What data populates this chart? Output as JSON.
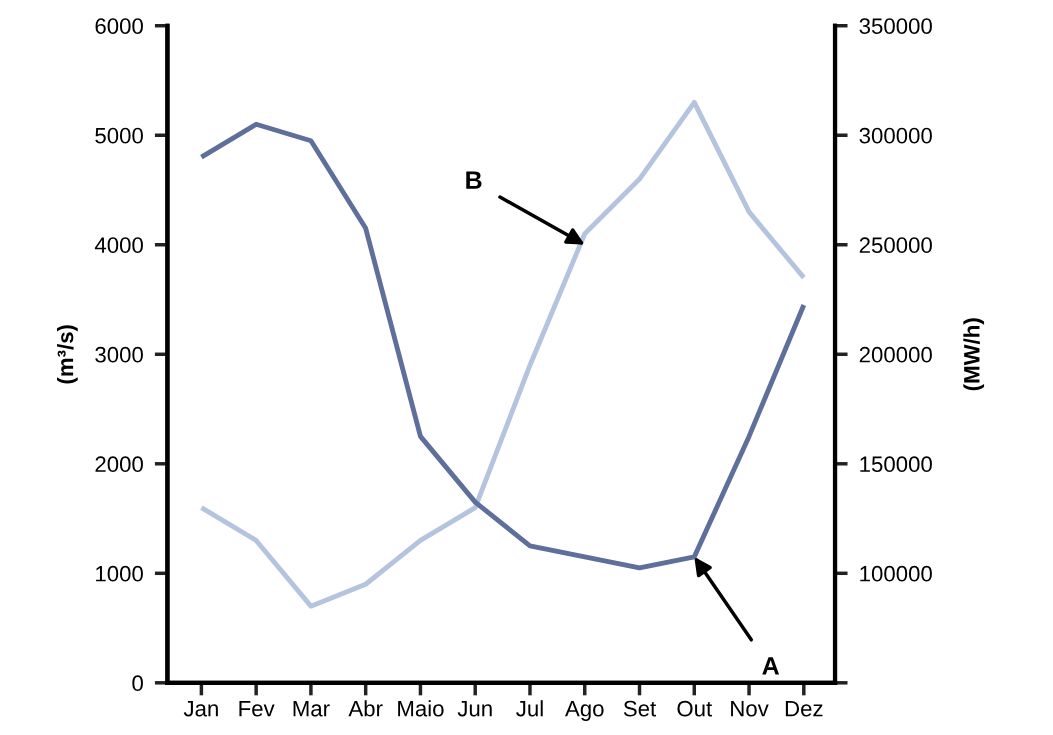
{
  "chart_data": {
    "type": "line",
    "categories": [
      "Jan",
      "Fev",
      "Mar",
      "Abr",
      "Maio",
      "Jun",
      "Jul",
      "Ago",
      "Set",
      "Out",
      "Nov",
      "Dez"
    ],
    "series": [
      {
        "color": "#5d6f9a",
        "values": [
          4800,
          5100,
          4950,
          4150,
          2250,
          1650,
          1250,
          1150,
          1050,
          1150,
          2250,
          3450
        ]
      },
      {
        "color": "#b4c4de",
        "axis": "y2",
        "values": [
          130000,
          115000,
          85000,
          95000,
          115000,
          130000,
          195000,
          255000,
          280000,
          315000,
          265000,
          235000
        ]
      }
    ],
    "ylabel": "(m³/s)",
    "y2label": "(MW/h)",
    "ylim": [
      0,
      6000
    ],
    "yticks": [
      0,
      1000,
      2000,
      3000,
      4000,
      5000,
      6000
    ],
    "y2lim": [
      50000,
      350000
    ],
    "y2ticks": [
      {
        "value": 50000,
        "label": null
      },
      100000,
      150000,
      200000,
      250000,
      300000,
      350000
    ],
    "annotations": [
      {
        "text": "B",
        "x": "Ago",
        "y": 4000
      },
      {
        "text": "A",
        "x": "Out",
        "y": 1150
      }
    ],
    "grid": false,
    "legend": false,
    "marker": "none",
    "line_style": "solid"
  }
}
